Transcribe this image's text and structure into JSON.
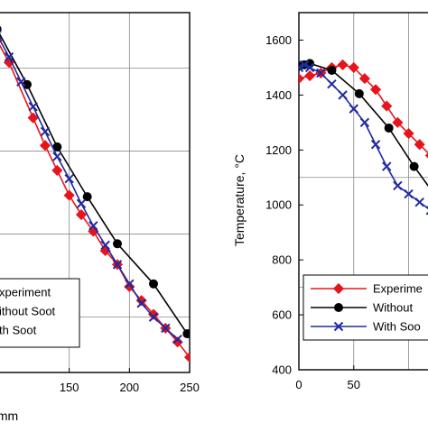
{
  "chart_data": [
    {
      "type": "line",
      "xlabel": "X, mm",
      "ylabel": "",
      "xlim": [
        85,
        250
      ],
      "ylim": [
        400,
        1700
      ],
      "x_ticks": [
        150,
        200,
        250
      ],
      "x_tick_labels": [
        "150",
        "200",
        "250"
      ],
      "grid": true,
      "legend_position": "bottom-left",
      "series": [
        {
          "name": "Experiment",
          "color": "#e8141c",
          "marker": "diamond",
          "x": [
            90,
            100,
            120,
            130,
            140,
            150,
            160,
            170,
            180,
            190,
            200,
            210,
            220,
            230,
            240,
            250
          ],
          "y": [
            1600,
            1520,
            1320,
            1220,
            1130,
            1040,
            970,
            910,
            840,
            790,
            710,
            660,
            610,
            560,
            510,
            455
          ]
        },
        {
          "name": "Without Soot",
          "color": "#000000",
          "marker": "circle",
          "x": [
            90,
            115,
            140,
            165,
            190,
            220,
            248
          ],
          "y": [
            1640,
            1440,
            1215,
            1035,
            865,
            720,
            540
          ]
        },
        {
          "name": "With Soot",
          "color": "#1f2aa0",
          "marker": "x",
          "x": [
            90,
            100,
            110,
            120,
            130,
            140,
            150,
            160,
            170,
            180,
            190,
            200,
            210,
            220,
            230,
            240
          ],
          "y": [
            1620,
            1540,
            1450,
            1360,
            1270,
            1180,
            1100,
            1010,
            930,
            860,
            790,
            720,
            650,
            600,
            560,
            520
          ]
        }
      ],
      "legend": [
        "xperiment",
        "ithout Soot",
        "th Soot"
      ]
    },
    {
      "type": "line",
      "xlabel": "",
      "ylabel": "Temperature, °C",
      "xlim": [
        0,
        130
      ],
      "ylim": [
        400,
        1700
      ],
      "x_ticks": [
        0,
        50
      ],
      "x_tick_labels": [
        "0",
        "50"
      ],
      "y_ticks": [
        400,
        600,
        800,
        1000,
        1200,
        1400,
        1600
      ],
      "y_tick_labels": [
        "400",
        "600",
        "800",
        "1000",
        "1200",
        "1400",
        "1600"
      ],
      "grid": true,
      "legend_position": "bottom-right",
      "series": [
        {
          "name": "Experiment",
          "color": "#e8141c",
          "marker": "diamond",
          "x": [
            0,
            10,
            20,
            30,
            40,
            50,
            60,
            70,
            80,
            90,
            100,
            110,
            120
          ],
          "y": [
            1460,
            1470,
            1480,
            1500,
            1510,
            1500,
            1460,
            1420,
            1360,
            1300,
            1260,
            1220,
            1180
          ]
        },
        {
          "name": "Without Soot",
          "color": "#000000",
          "marker": "circle",
          "x": [
            0,
            5,
            10,
            30,
            55,
            82,
            105,
            125
          ],
          "y": [
            1505,
            1510,
            1515,
            1490,
            1405,
            1280,
            1140,
            1030
          ]
        },
        {
          "name": "With Soot",
          "color": "#1f2aa0",
          "marker": "x",
          "x": [
            0,
            5,
            10,
            20,
            30,
            40,
            50,
            60,
            70,
            80,
            90,
            100,
            110,
            120
          ],
          "y": [
            1500,
            1510,
            1500,
            1480,
            1440,
            1400,
            1350,
            1300,
            1220,
            1140,
            1070,
            1040,
            1010,
            980
          ]
        }
      ],
      "legend": [
        "Experime",
        "Without",
        "With Soo"
      ]
    }
  ]
}
